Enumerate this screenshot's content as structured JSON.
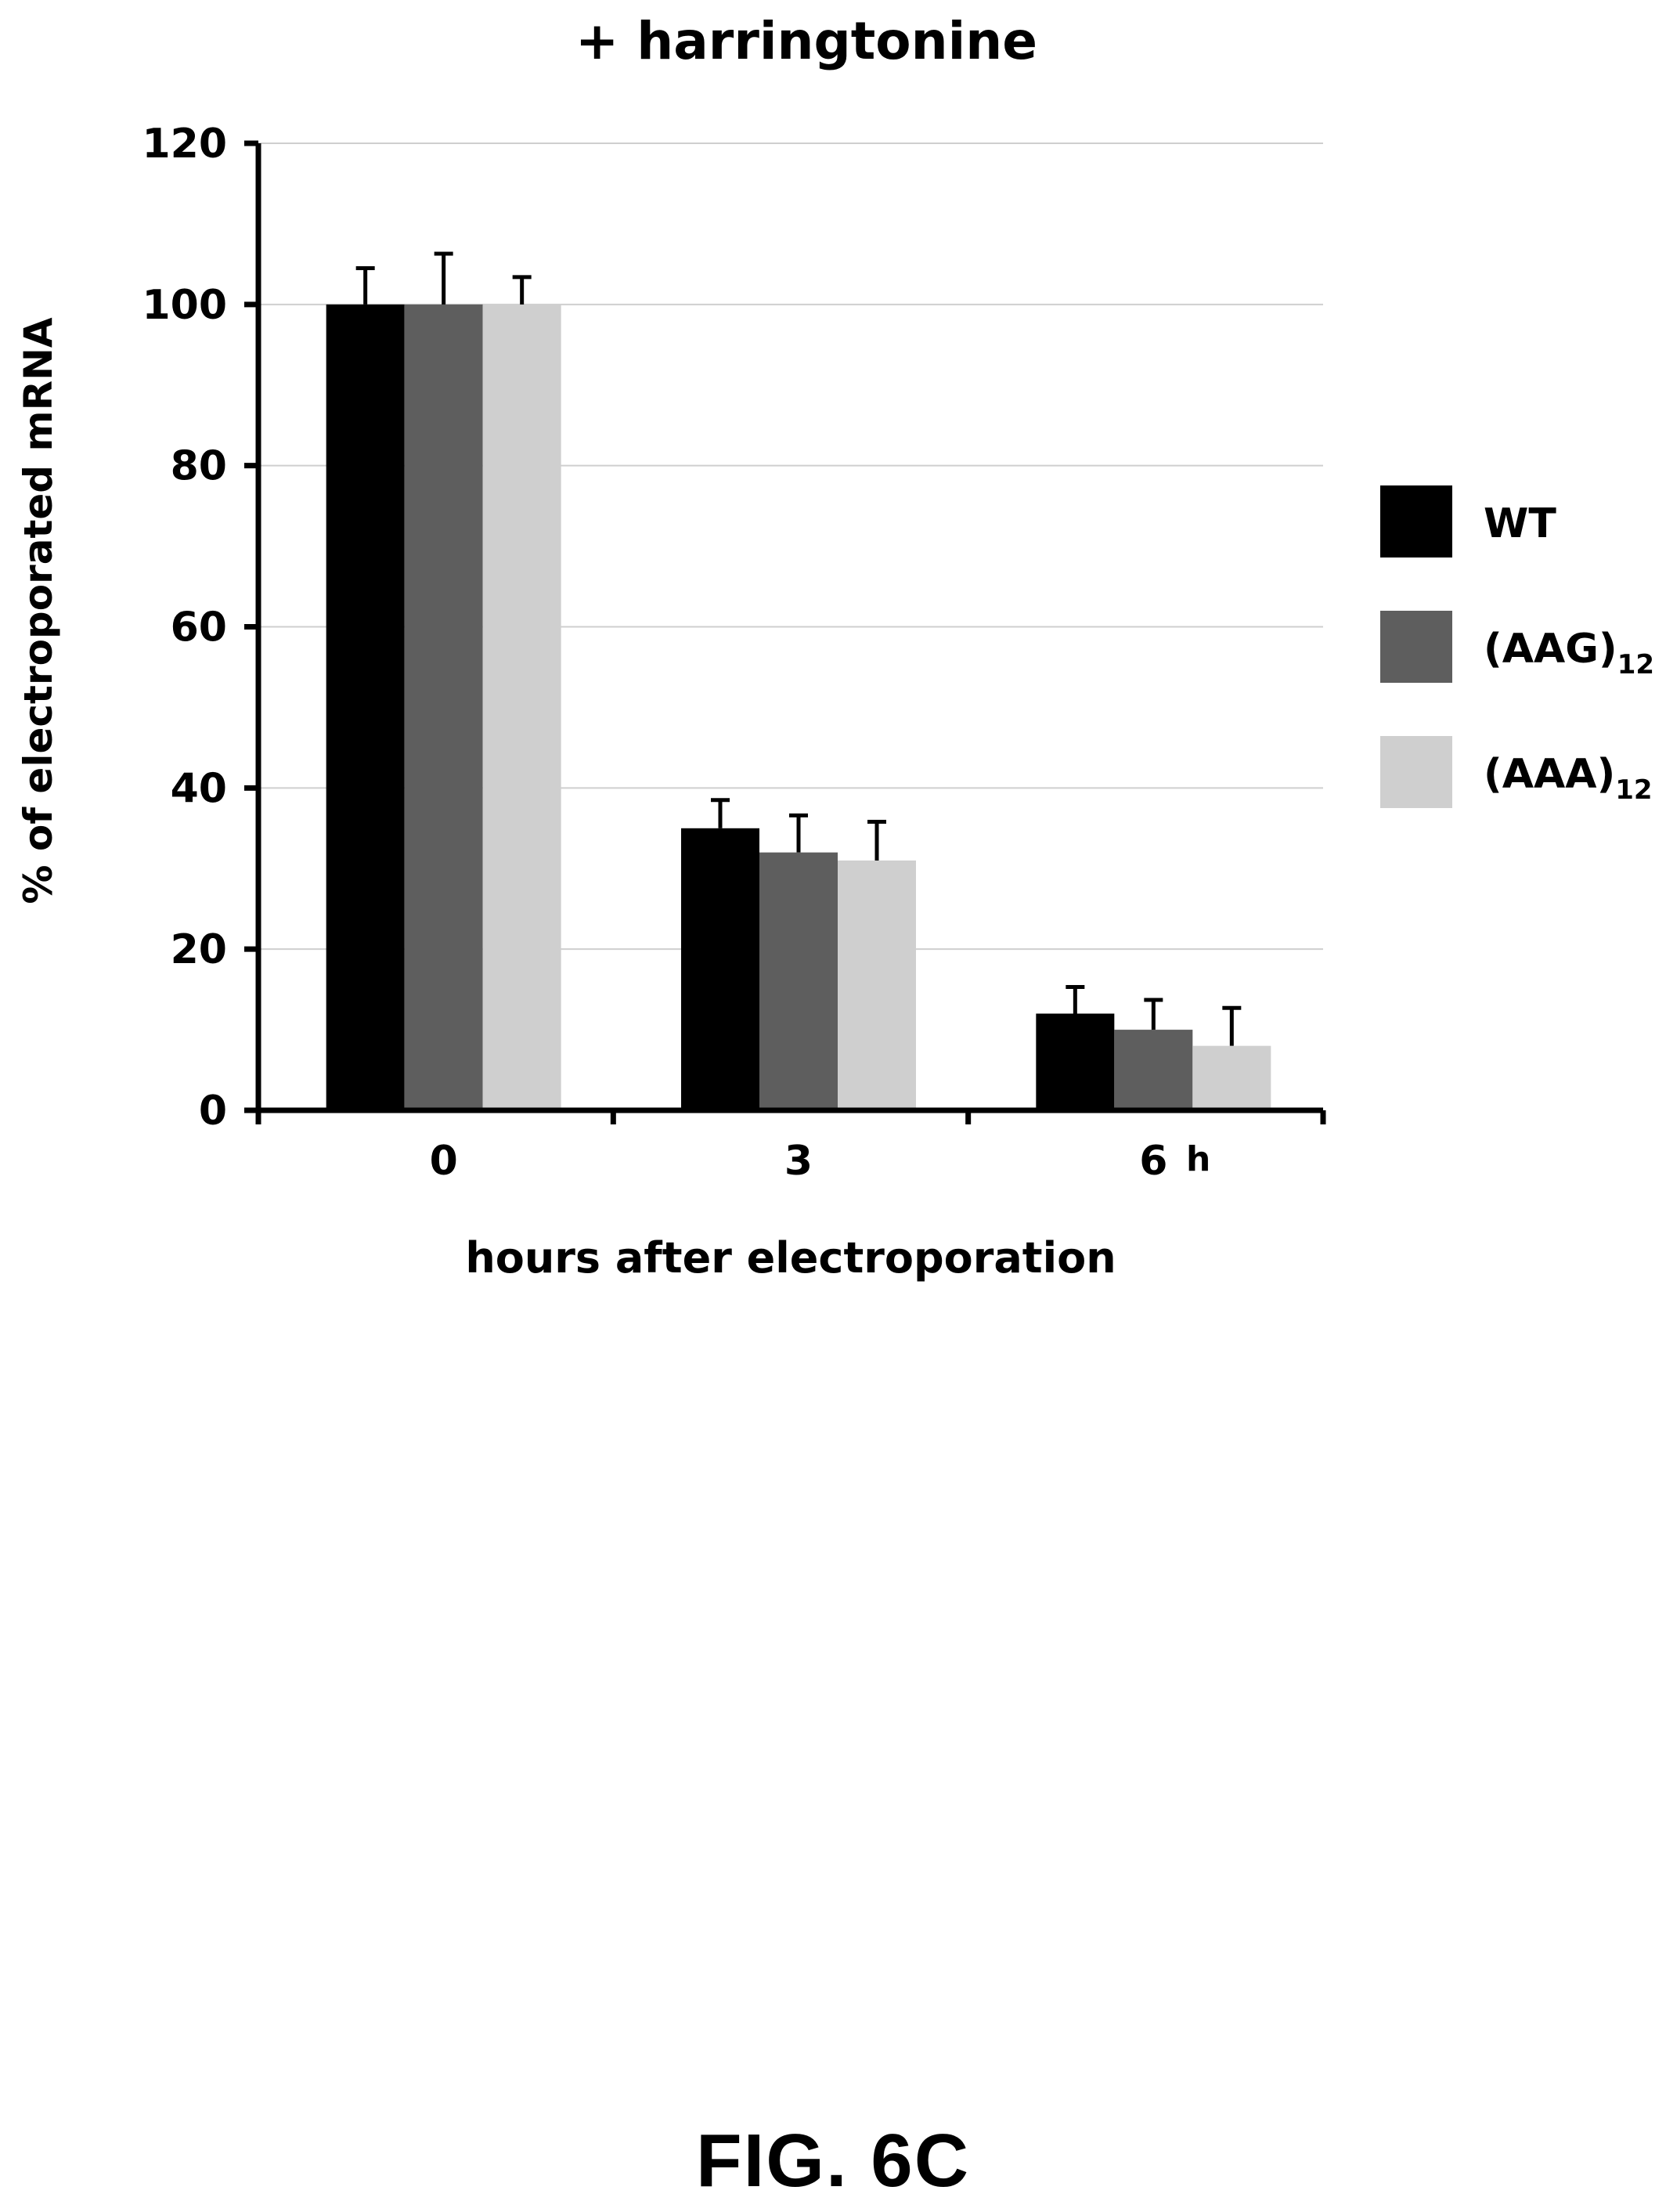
{
  "chart_data": {
    "type": "bar",
    "title": "+ harringtonine",
    "xlabel": "hours after electroporation",
    "ylabel": "% of electroporated mRNA",
    "x_unit": "h",
    "categories": [
      "0",
      "3",
      "6"
    ],
    "ylim": [
      0,
      120
    ],
    "yticks": [
      0,
      20,
      40,
      60,
      80,
      100,
      120
    ],
    "grid": true,
    "legend_position": "right",
    "series": [
      {
        "name": "WT",
        "name_sub": "",
        "color": "#000000",
        "values": [
          100,
          35,
          12
        ],
        "errors": [
          4.5,
          3.5,
          3.3
        ]
      },
      {
        "name": "(AAG)",
        "name_sub": "12",
        "color": "#5e5e5e",
        "values": [
          100,
          32,
          10
        ],
        "errors": [
          6.3,
          4.6,
          3.7
        ]
      },
      {
        "name": "(AAA)",
        "name_sub": "12",
        "color": "#cfcfcf",
        "values": [
          100,
          31,
          8
        ],
        "errors": [
          3.4,
          4.8,
          4.7
        ]
      }
    ]
  },
  "figure_label": "FIG. 6C"
}
